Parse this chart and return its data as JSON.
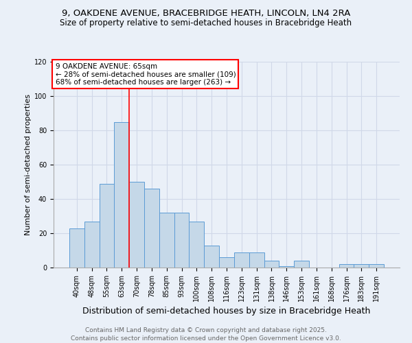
{
  "title1": "9, OAKDENE AVENUE, BRACEBRIDGE HEATH, LINCOLN, LN4 2RA",
  "title2": "Size of property relative to semi-detached houses in Bracebridge Heath",
  "xlabel": "Distribution of semi-detached houses by size in Bracebridge Heath",
  "ylabel": "Number of semi-detached properties",
  "footer": "Contains HM Land Registry data © Crown copyright and database right 2025.\nContains public sector information licensed under the Open Government Licence v3.0.",
  "categories": [
    "40sqm",
    "48sqm",
    "55sqm",
    "63sqm",
    "70sqm",
    "78sqm",
    "85sqm",
    "93sqm",
    "100sqm",
    "108sqm",
    "116sqm",
    "123sqm",
    "131sqm",
    "138sqm",
    "146sqm",
    "153sqm",
    "161sqm",
    "168sqm",
    "176sqm",
    "183sqm",
    "191sqm"
  ],
  "values": [
    23,
    27,
    49,
    85,
    50,
    46,
    32,
    32,
    27,
    13,
    6,
    9,
    9,
    4,
    1,
    4,
    0,
    0,
    2,
    2,
    2
  ],
  "bar_color": "#c5d8e8",
  "bar_edge_color": "#5b9bd5",
  "grid_color": "#d0d8e8",
  "bg_color": "#eaf0f8",
  "annotation_text": "9 OAKDENE AVENUE: 65sqm\n← 28% of semi-detached houses are smaller (109)\n68% of semi-detached houses are larger (263) →",
  "vline_x": 3.5,
  "vline_color": "red",
  "ylim": [
    0,
    120
  ],
  "yticks": [
    0,
    20,
    40,
    60,
    80,
    100,
    120
  ],
  "annotation_box_color": "red",
  "title1_fontsize": 9.5,
  "title2_fontsize": 8.5,
  "xlabel_fontsize": 9,
  "ylabel_fontsize": 8,
  "footer_fontsize": 6.5,
  "tick_fontsize": 7,
  "annotation_fontsize": 7.5
}
